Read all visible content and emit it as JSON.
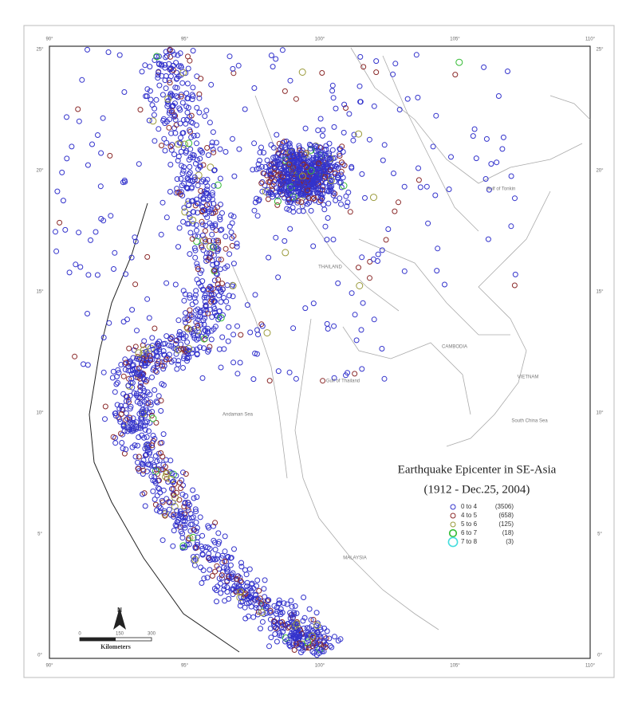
{
  "map": {
    "title": "Earthquake Epicenter in SE-Asia",
    "subtitle": "(1912 - Dec.25, 2004)",
    "longitude_ticks": [
      "90°",
      "95°",
      "100°",
      "105°",
      "110°"
    ],
    "latitude_ticks": [
      "25°",
      "20°",
      "15°",
      "10°",
      "5°",
      "0°"
    ],
    "places": [
      "Gulf of Tonkin",
      "THAILAND",
      "CAMBODIA",
      "VIETNAM",
      "Gulf of Thailand",
      "Andaman Sea",
      "South China Sea",
      "MALAYSIA"
    ],
    "legend": [
      {
        "label": "0 to 4",
        "count": "(3506)",
        "color": "#3333cc"
      },
      {
        "label": "4 to 5",
        "count": "(658)",
        "color": "#8b2a2a"
      },
      {
        "label": "5 to 6",
        "count": "(125)",
        "color": "#9a9a3a"
      },
      {
        "label": "6 to 7",
        "count": "(18)",
        "color": "#33bb33"
      },
      {
        "label": "7 to 8",
        "count": "(3)",
        "color": "#44dddd"
      }
    ],
    "scale": {
      "north": "N",
      "start": "0",
      "middle": "150",
      "end": "300",
      "unit": "Kilometers"
    }
  }
}
